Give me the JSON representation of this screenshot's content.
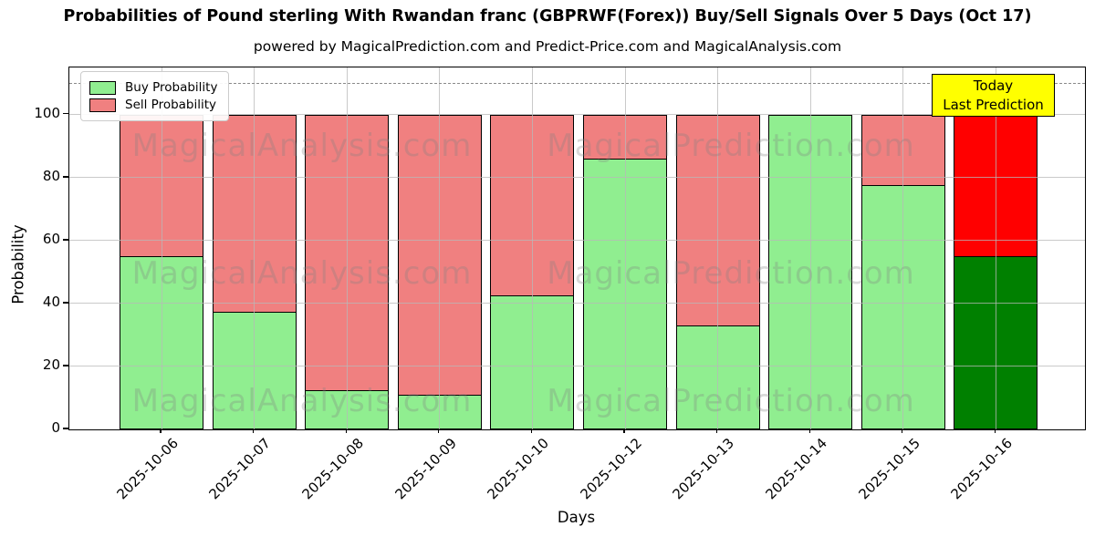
{
  "title": "Probabilities of Pound sterling With Rwandan franc (GBPRWF(Forex)) Buy/Sell Signals Over 5 Days (Oct 17)",
  "subtitle": "powered by MagicalPrediction.com and Predict-Price.com and MagicalAnalysis.com",
  "legend": [
    {
      "label": "Buy Probability",
      "color": "#90EE90"
    },
    {
      "label": "Sell Probability",
      "color": "#F08080"
    }
  ],
  "annotation": {
    "line1": "Today",
    "line2": "Last Prediction",
    "bg": "#FFFF00"
  },
  "watermarks": {
    "left": "MagicalAnalysis.com",
    "right": "MagicalPrediction.com"
  },
  "colors": {
    "buy": "#90EE90",
    "sell": "#F08080",
    "today_buy": "#008000",
    "today_sell": "#FF0000",
    "grid": "#b8b8b8",
    "dashed_line": "#8a8a8a",
    "bar_edge": "#000000",
    "annotation_bg": "#FFFF00"
  },
  "chart_data": {
    "type": "bar",
    "stacked": true,
    "title": "Probabilities of Pound sterling With Rwandan franc (GBPRWF(Forex)) Buy/Sell Signals Over 5 Days (Oct 17)",
    "xlabel": "Days",
    "ylabel": "Probability",
    "categories": [
      "2025-10-06",
      "2025-10-07",
      "2025-10-08",
      "2025-10-09",
      "2025-10-10",
      "2025-10-12",
      "2025-10-13",
      "2025-10-14",
      "2025-10-15",
      "2025-10-16"
    ],
    "series": [
      {
        "name": "Buy Probability",
        "color": "#90EE90",
        "today_color": "#008000",
        "values": [
          55,
          37.5,
          12.5,
          11,
          42.5,
          86,
          33,
          100,
          77.5,
          55
        ]
      },
      {
        "name": "Sell Probability",
        "color": "#F08080",
        "today_color": "#FF0000",
        "values": [
          45,
          62.5,
          87.5,
          89,
          57.5,
          14,
          67,
          0,
          22.5,
          45
        ]
      }
    ],
    "today_index": 9,
    "yticks": [
      0,
      20,
      40,
      60,
      80,
      100
    ],
    "ylim": [
      0,
      115
    ],
    "dashed_line_y": 110,
    "grid": true,
    "legend_position": "upper-left"
  }
}
